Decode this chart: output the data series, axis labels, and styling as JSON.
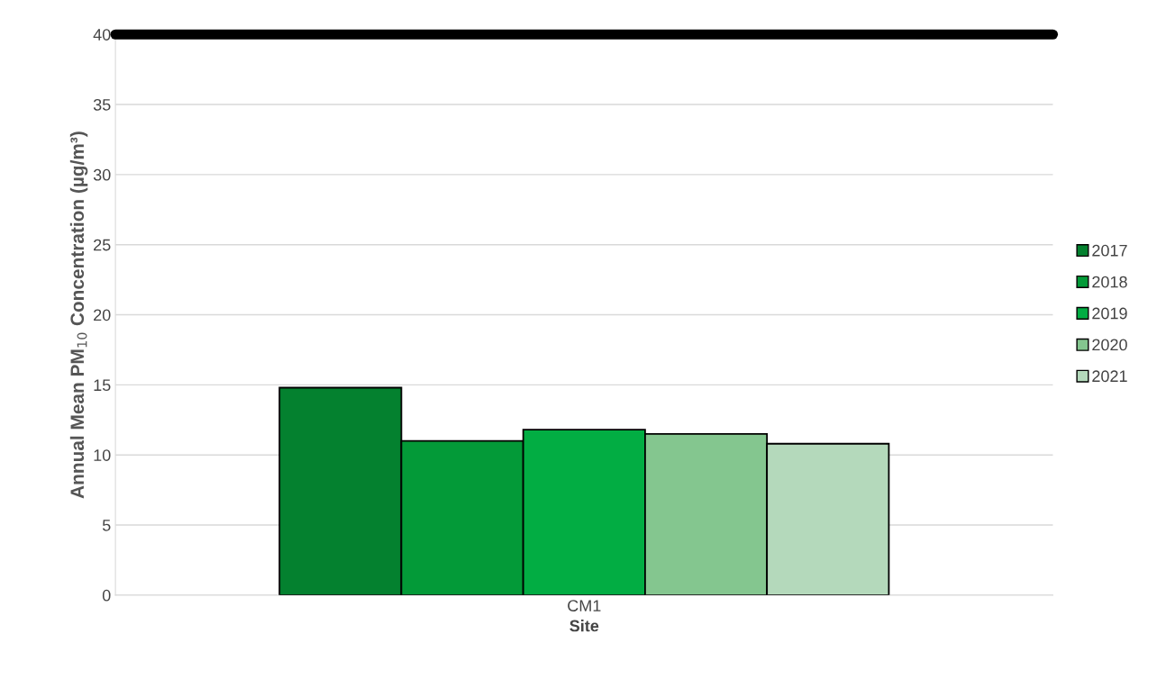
{
  "chart_data": {
    "type": "bar",
    "xlabel": "Site",
    "ylabel": "Annual Mean PM$_{10}$ Concentration (µg/m³)",
    "categories": [
      "CM1"
    ],
    "series": [
      {
        "name": "2017",
        "color": "#04812f",
        "values": [
          14.8
        ]
      },
      {
        "name": "2018",
        "color": "#039a38",
        "values": [
          11.0
        ]
      },
      {
        "name": "2019",
        "color": "#02ad43",
        "values": [
          11.8
        ]
      },
      {
        "name": "2020",
        "color": "#84c68f",
        "values": [
          11.5
        ]
      },
      {
        "name": "2021",
        "color": "#b4d9bb",
        "values": [
          10.8
        ]
      }
    ],
    "ylim": [
      0,
      40
    ],
    "yticks": [
      0,
      5,
      10,
      15,
      20,
      25,
      30,
      35,
      40
    ],
    "ref_lines": [
      {
        "axis": "y",
        "value": 40,
        "color": "#000000"
      }
    ],
    "grid": "y",
    "legend": "right"
  }
}
